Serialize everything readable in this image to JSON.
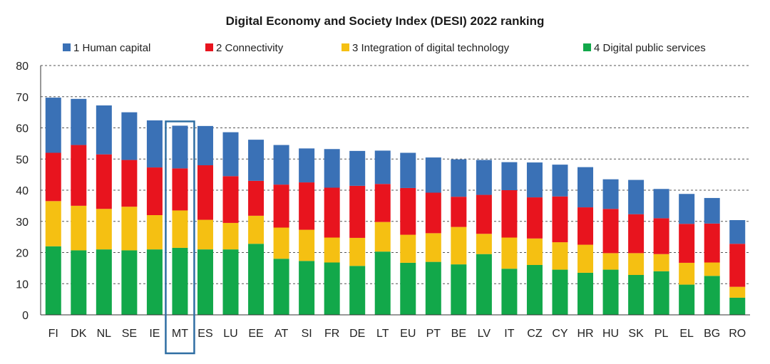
{
  "chart_data": {
    "type": "bar",
    "stacked": true,
    "title": "Digital Economy and Society Index (DESI) 2022 ranking",
    "categories": [
      "FI",
      "DK",
      "NL",
      "SE",
      "IE",
      "MT",
      "ES",
      "LU",
      "EE",
      "AT",
      "SI",
      "FR",
      "DE",
      "LT",
      "EU",
      "PT",
      "BE",
      "LV",
      "IT",
      "CZ",
      "CY",
      "HR",
      "HU",
      "SK",
      "PL",
      "EL",
      "BG",
      "RO"
    ],
    "highlight": "MT",
    "ylim": [
      0,
      80
    ],
    "yticks": [
      0,
      10,
      20,
      30,
      40,
      50,
      60,
      70,
      80
    ],
    "grid": true,
    "legend_position": "top",
    "series": [
      {
        "name": "4 Digital public services",
        "color": "#12a84a",
        "values": [
          22,
          20.7,
          21,
          20.7,
          21,
          21.5,
          21,
          21,
          22.8,
          18,
          17.3,
          16.8,
          15.7,
          20.3,
          16.7,
          17,
          16.2,
          19.5,
          14.8,
          16,
          14.5,
          13.5,
          14.5,
          12.8,
          14,
          9.7,
          12.5,
          5.5
        ]
      },
      {
        "name": "3 Integration of digital technology",
        "color": "#f5c012",
        "values": [
          14.5,
          14.3,
          13,
          14,
          11,
          12,
          9.5,
          8.5,
          9,
          10,
          10,
          8,
          9,
          9.5,
          9,
          9.2,
          12,
          6.5,
          10,
          8.5,
          8.8,
          9,
          5.3,
          7,
          5.5,
          7,
          4.3,
          3.5
        ]
      },
      {
        "name": "2 Connectivity",
        "color": "#e8141e",
        "values": [
          15.5,
          19.5,
          17.5,
          15,
          15.3,
          13.5,
          17.5,
          15,
          11.2,
          13.8,
          15.2,
          16,
          16.7,
          12.2,
          15,
          13,
          9.7,
          12.5,
          15.2,
          13.2,
          14.7,
          12,
          14.2,
          12.5,
          11.5,
          12.5,
          12.5,
          13.8
        ]
      },
      {
        "name": "1 Human capital",
        "color": "#3a71b6",
        "values": [
          17.7,
          14.8,
          15.7,
          15.3,
          15.1,
          13.7,
          12.6,
          14.1,
          13.2,
          12.7,
          10.9,
          12.4,
          11.2,
          10.7,
          11.3,
          11.3,
          12,
          11.2,
          9,
          11.2,
          10.2,
          12.9,
          9.5,
          11,
          9.4,
          9.6,
          8.2,
          7.6
        ]
      }
    ],
    "legend_order": [
      "1 Human capital",
      "2 Connectivity",
      "3 Integration of digital technology",
      "4 Digital public services"
    ]
  }
}
